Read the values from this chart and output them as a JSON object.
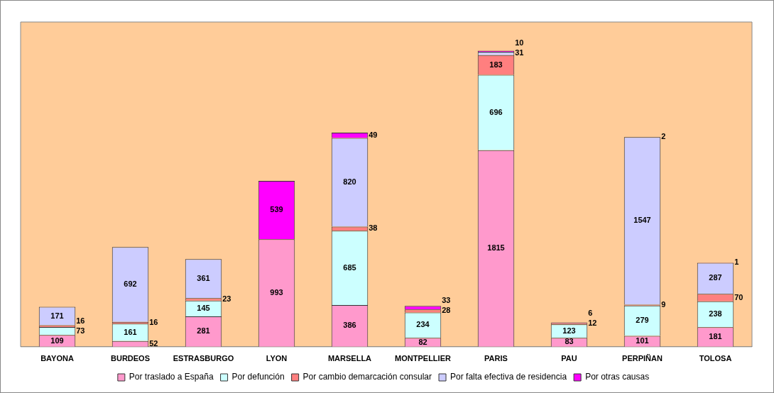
{
  "chart_data": {
    "type": "bar",
    "stacked": true,
    "relative": false,
    "legend": "bottom",
    "grid": false,
    "categories": [
      "BAYONA",
      "BURDEOS",
      "ESTRASBURGO",
      "LYON",
      "MARSELLA",
      "MONTPELLIER",
      "PARIS",
      "PAU",
      "PERPIÑAN",
      "TOLOSA"
    ],
    "series": [
      {
        "name": "Por traslado a España",
        "color": "#ff99cc",
        "values": [
          109,
          52,
          281,
          993,
          386,
          82,
          1815,
          83,
          101,
          181
        ],
        "value_labels": [
          "109",
          "52",
          "281",
          "993",
          "386",
          "82",
          "1815",
          "83",
          "101",
          "181"
        ]
      },
      {
        "name": "Por defunción",
        "color": "#ccffff",
        "values": [
          73,
          161,
          145,
          0,
          685,
          234,
          696,
          123,
          279,
          238
        ],
        "value_labels": [
          "73",
          "161",
          "145",
          null,
          "685",
          "234",
          "696",
          "123",
          "279",
          "238"
        ]
      },
      {
        "name": "Por cambio demarcación consular",
        "color": "#ff7f7f",
        "values": [
          16,
          16,
          23,
          0,
          38,
          28,
          183,
          12,
          9,
          70
        ],
        "value_labels": [
          "16",
          "16",
          "23",
          null,
          "38",
          "28",
          "183",
          "12",
          "9",
          "70"
        ]
      },
      {
        "name": "Por falta efectiva de residencia",
        "color": "#ccccff",
        "values": [
          171,
          692,
          361,
          0,
          820,
          0,
          31,
          0,
          1547,
          287
        ],
        "value_labels": [
          "171",
          "692",
          "361",
          null,
          "820",
          null,
          "31",
          null,
          "1547",
          "287"
        ]
      },
      {
        "name": "Por otras causas",
        "color": "#ff00ff",
        "values": [
          0,
          0,
          0,
          539,
          49,
          33,
          10,
          6,
          2,
          1
        ],
        "value_labels": [
          null,
          null,
          null,
          "539",
          "49",
          "33",
          "10",
          "6",
          "2",
          "1"
        ]
      }
    ]
  }
}
